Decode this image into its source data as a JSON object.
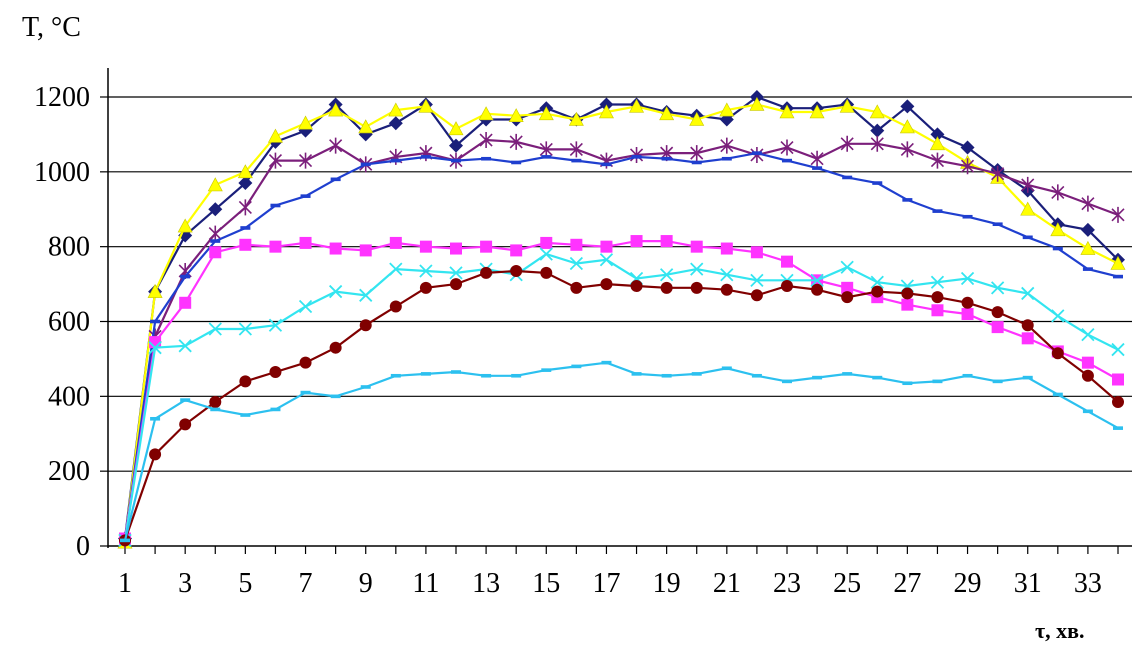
{
  "chart_data": {
    "type": "line",
    "title": "",
    "ylabel": "T, °C",
    "xlabel": "τ, хв.",
    "ylim": [
      0,
      1200
    ],
    "xlim": [
      1,
      34
    ],
    "y_ticks": [
      0,
      200,
      400,
      600,
      800,
      1000,
      1200
    ],
    "x_ticks": [
      1,
      3,
      5,
      7,
      9,
      11,
      13,
      15,
      17,
      19,
      21,
      23,
      25,
      27,
      29,
      31,
      33
    ],
    "grid": "horizontal",
    "x": [
      1,
      2,
      3,
      4,
      5,
      6,
      7,
      8,
      9,
      10,
      11,
      12,
      13,
      14,
      15,
      16,
      17,
      18,
      19,
      20,
      21,
      22,
      23,
      24,
      25,
      26,
      27,
      28,
      29,
      30,
      31,
      32,
      33,
      34
    ],
    "series": [
      {
        "color": "#1a1f7a",
        "marker": "diamond",
        "values": [
          20,
          680,
          830,
          900,
          970,
          1080,
          1110,
          1180,
          1100,
          1130,
          1180,
          1070,
          1140,
          1140,
          1170,
          1140,
          1180,
          1180,
          1160,
          1150,
          1140,
          1200,
          1170,
          1170,
          1180,
          1110,
          1175,
          1100,
          1065,
          1005,
          950,
          860,
          845,
          765
        ]
      },
      {
        "color": "#ffff00",
        "marker": "triangle",
        "values": [
          10,
          680,
          855,
          965,
          1000,
          1095,
          1130,
          1165,
          1120,
          1165,
          1175,
          1115,
          1155,
          1150,
          1155,
          1140,
          1160,
          1175,
          1155,
          1140,
          1165,
          1180,
          1160,
          1160,
          1175,
          1160,
          1120,
          1075,
          1025,
          985,
          900,
          845,
          795,
          755
        ]
      },
      {
        "color": "#7b1f7b",
        "marker": "star",
        "values": [
          15,
          560,
          735,
          835,
          905,
          1030,
          1030,
          1070,
          1020,
          1040,
          1050,
          1030,
          1085,
          1080,
          1060,
          1060,
          1030,
          1045,
          1050,
          1050,
          1070,
          1045,
          1065,
          1035,
          1075,
          1075,
          1060,
          1030,
          1015,
          995,
          965,
          945,
          915,
          885
        ]
      },
      {
        "color": "#1f3fcf",
        "marker": "dash",
        "values": [
          15,
          600,
          720,
          815,
          850,
          910,
          935,
          980,
          1020,
          1030,
          1040,
          1030,
          1035,
          1025,
          1040,
          1030,
          1020,
          1040,
          1035,
          1025,
          1035,
          1050,
          1030,
          1010,
          985,
          970,
          925,
          895,
          880,
          860,
          825,
          795,
          740,
          720
        ]
      },
      {
        "color": "#ff33ff",
        "marker": "square",
        "values": [
          20,
          545,
          650,
          785,
          805,
          800,
          810,
          795,
          790,
          810,
          800,
          795,
          800,
          790,
          810,
          805,
          800,
          815,
          815,
          800,
          795,
          785,
          760,
          710,
          690,
          665,
          645,
          630,
          620,
          585,
          555,
          520,
          490,
          445
        ]
      },
      {
        "color": "#33e5f0",
        "marker": "x",
        "values": [
          15,
          530,
          535,
          580,
          580,
          590,
          640,
          680,
          670,
          740,
          735,
          730,
          740,
          725,
          780,
          755,
          765,
          715,
          725,
          740,
          725,
          710,
          710,
          710,
          745,
          705,
          695,
          705,
          715,
          690,
          675,
          615,
          565,
          525
        ]
      },
      {
        "color": "#800000",
        "marker": "circle",
        "values": [
          15,
          245,
          325,
          385,
          440,
          465,
          490,
          530,
          590,
          640,
          690,
          700,
          730,
          735,
          730,
          690,
          700,
          695,
          690,
          690,
          685,
          670,
          695,
          685,
          665,
          680,
          675,
          665,
          650,
          625,
          590,
          515,
          455,
          385
        ]
      },
      {
        "color": "#2cc0ef",
        "marker": "dash",
        "values": [
          15,
          340,
          390,
          365,
          350,
          365,
          410,
          400,
          425,
          455,
          460,
          465,
          455,
          455,
          470,
          480,
          490,
          460,
          455,
          460,
          475,
          455,
          440,
          450,
          460,
          450,
          435,
          440,
          455,
          440,
          450,
          405,
          360,
          315
        ]
      }
    ]
  }
}
